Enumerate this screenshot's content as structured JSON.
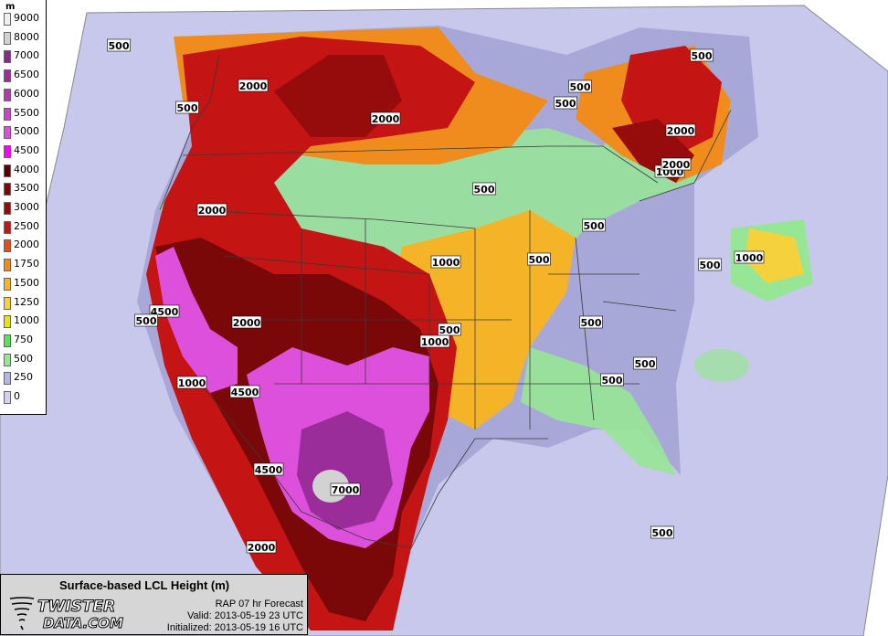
{
  "legend": {
    "unit": "m",
    "bins": [
      {
        "label": "9000",
        "color": "#f0f0f0"
      },
      {
        "label": "8000",
        "color": "#d2d2d2"
      },
      {
        "label": "7000",
        "color": "#8a2a8a"
      },
      {
        "label": "6500",
        "color": "#9b2d9b"
      },
      {
        "label": "6000",
        "color": "#b03cb0"
      },
      {
        "label": "5500",
        "color": "#c845c8"
      },
      {
        "label": "5000",
        "color": "#dc50dc"
      },
      {
        "label": "4500",
        "color": "#ff00ff"
      },
      {
        "label": "4000",
        "color": "#5a0000"
      },
      {
        "label": "3500",
        "color": "#7a0808"
      },
      {
        "label": "3000",
        "color": "#960c0c"
      },
      {
        "label": "2500",
        "color": "#c41414"
      },
      {
        "label": "2000",
        "color": "#e0501a"
      },
      {
        "label": "1750",
        "color": "#f08c1e"
      },
      {
        "label": "1500",
        "color": "#f5b428"
      },
      {
        "label": "1250",
        "color": "#f5d23c"
      },
      {
        "label": "1000",
        "color": "#e6e600"
      },
      {
        "label": "750",
        "color": "#5ae15a"
      },
      {
        "label": "500",
        "color": "#96e696"
      },
      {
        "label": "250",
        "color": "#b4b4e6"
      },
      {
        "label": "0",
        "color": "#d2d2f0"
      }
    ]
  },
  "contour_labels": [
    "500",
    "2000",
    "500",
    "2000",
    "500",
    "500",
    "500",
    "2000",
    "2000",
    "1000",
    "2000",
    "500",
    "500",
    "1000",
    "500",
    "1000",
    "4500",
    "500",
    "2000",
    "500",
    "500",
    "1000",
    "4500",
    "500",
    "500",
    "500",
    "1000",
    "4500",
    "7000",
    "500",
    "2000"
  ],
  "info": {
    "product": "Surface-based LCL Height (m)",
    "logo_line1": "TWISTER",
    "logo_line2": "DATA.COM",
    "forecast": "RAP 07 hr Forecast",
    "valid": "Valid: 2013-05-19 23 UTC",
    "initialized": "Initialized: 2013-05-19 16 UTC"
  },
  "colors": {
    "outside": "#ffffff",
    "ocean": "#c8c8ec",
    "land_low": "#a8a8d8",
    "boundary": "#3a3a3a"
  }
}
